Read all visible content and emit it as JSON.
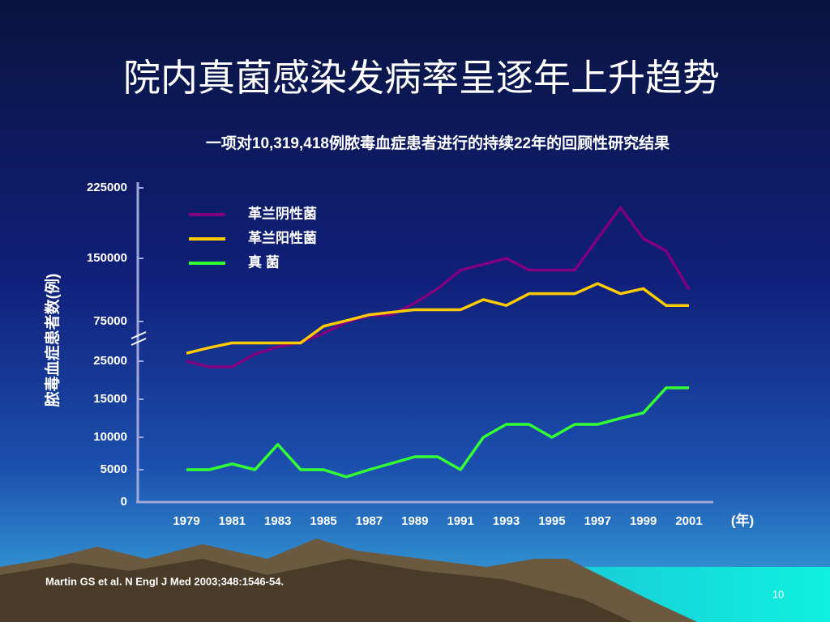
{
  "title": "院内真菌感染发病率呈逐年上升趋势",
  "citation": "Martin GS et al. N Engl J Med 2003;348:1546-54.",
  "page_number": "10",
  "chart_data": {
    "type": "line",
    "subtitle": "一项对10,319,418例脓毒血症患者进行的持续22年的回顾性研究结果",
    "y_label": "脓毒血症患者数(例)",
    "x_label": "(年)",
    "x": [
      1979,
      1980,
      1981,
      1982,
      1983,
      1984,
      1985,
      1986,
      1987,
      1988,
      1989,
      1990,
      1991,
      1992,
      1993,
      1994,
      1995,
      1996,
      1997,
      1998,
      1999,
      2000,
      2001
    ],
    "xlim": [
      1979,
      2001
    ],
    "xticks": [
      1979,
      1981,
      1983,
      1985,
      1987,
      1989,
      1991,
      1993,
      1995,
      1997,
      1999,
      2001
    ],
    "ylim": [
      0,
      225000
    ],
    "yticks": [
      0,
      5000,
      10000,
      15000,
      25000,
      75000,
      150000,
      225000
    ],
    "series": [
      {
        "name": "革兰阴性菌",
        "color": "#800080",
        "values": [
          25000,
          23500,
          23500,
          34000,
          43000,
          49000,
          60000,
          74000,
          82000,
          83000,
          97000,
          114000,
          136000,
          143000,
          150000,
          136000,
          136000,
          136000,
          171000,
          204000,
          171000,
          158000,
          113000
        ]
      },
      {
        "name": "革兰阳性菌",
        "color": "#ffcc00",
        "values": [
          35000,
          42000,
          48000,
          48000,
          48000,
          48000,
          69000,
          76000,
          83000,
          86000,
          89000,
          89000,
          89000,
          101000,
          94000,
          108000,
          108000,
          108000,
          120000,
          108000,
          114000,
          94000,
          94000
        ]
      },
      {
        "name": "真  菌",
        "color": "#33ff33",
        "values": [
          5000,
          5000,
          5900,
          5000,
          8900,
          5000,
          5000,
          3900,
          5000,
          6000,
          7000,
          7000,
          5000,
          10000,
          11700,
          11700,
          10000,
          11700,
          11700,
          12500,
          13200,
          18000,
          18000
        ]
      }
    ]
  }
}
